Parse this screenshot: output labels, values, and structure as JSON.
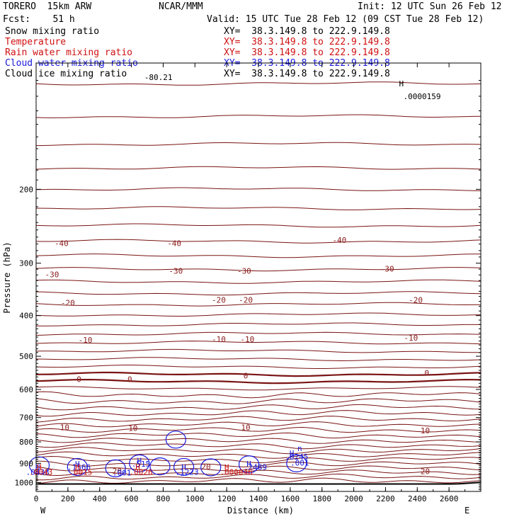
{
  "header": {
    "model": "TORERO  15km ARW",
    "forecast": "Fcst:    51 h",
    "org": "NCAR/MMM",
    "init": "Init: 12 UTC Sun 26 Feb 12",
    "valid": "Valid: 15 UTC Tue 28 Feb 12 (09 CST Tue 28 Feb 12)"
  },
  "fields": [
    {
      "name": "Snow mixing ratio",
      "xy": "XY=  38.3.149.8 to 222.9.149.8",
      "color": "#000000"
    },
    {
      "name": "Temperature",
      "xy": "XY=  38.3.149.8 to 222.9.149.8",
      "color": "#d01010"
    },
    {
      "name": "Rain water mixing ratio",
      "xy": "XY=  38.3.149.8 to 222.9.149.8",
      "color": "#d01010"
    },
    {
      "name": "Cloud water mixing ratio",
      "xy": "XY=  38.3.149.8 to 222.9.149.8",
      "color": "#1a1adc"
    },
    {
      "name": "Cloud ice mixing ratio",
      "xy": "XY=  38.3.149.8 to 222.9.149.8",
      "color": "#000000"
    }
  ],
  "chart_data": {
    "type": "contour",
    "xlabel": "Distance (km)",
    "ylabel": "Pressure (hPa)",
    "xlim": [
      0,
      2800
    ],
    "ylim": [
      1050,
      100
    ],
    "y_log": true,
    "xticks": [
      0,
      200,
      400,
      600,
      800,
      1000,
      1200,
      1400,
      1600,
      1800,
      2000,
      2200,
      2400,
      2600
    ],
    "yticks": [
      200,
      300,
      400,
      500,
      600,
      700,
      800,
      900,
      1000
    ],
    "x_end_labels": {
      "left": "W",
      "right": "E"
    },
    "temperature_label_color": "#8b1c1c",
    "temperature_labels": [
      {
        "text": "-40",
        "x": 160,
        "p": 269
      },
      {
        "text": "-40",
        "x": 870,
        "p": 269
      },
      {
        "text": "-40",
        "x": 1910,
        "p": 264
      },
      {
        "text": "-30",
        "x": 100,
        "p": 319
      },
      {
        "text": "-30",
        "x": 880,
        "p": 313
      },
      {
        "text": "-30",
        "x": 1310,
        "p": 313
      },
      {
        "text": "-30",
        "x": 2210,
        "p": 309
      },
      {
        "text": "-20",
        "x": 200,
        "p": 373
      },
      {
        "text": "-20",
        "x": 1150,
        "p": 367
      },
      {
        "text": "-20",
        "x": 1320,
        "p": 367
      },
      {
        "text": "-20",
        "x": 2390,
        "p": 367
      },
      {
        "text": "-10",
        "x": 310,
        "p": 457
      },
      {
        "text": "-10",
        "x": 1150,
        "p": 455
      },
      {
        "text": "-10",
        "x": 1330,
        "p": 455
      },
      {
        "text": "-10",
        "x": 2360,
        "p": 452
      },
      {
        "text": "0",
        "x": 270,
        "p": 567
      },
      {
        "text": "0",
        "x": 590,
        "p": 567
      },
      {
        "text": "0",
        "x": 1320,
        "p": 556
      },
      {
        "text": "0",
        "x": 2460,
        "p": 548
      },
      {
        "text": "10",
        "x": 180,
        "p": 738
      },
      {
        "text": "10",
        "x": 610,
        "p": 741
      },
      {
        "text": "10",
        "x": 1320,
        "p": 738
      },
      {
        "text": "10",
        "x": 2450,
        "p": 752
      },
      {
        "text": "20",
        "x": 1070,
        "p": 917
      },
      {
        "text": "20",
        "x": 510,
        "p": 938
      },
      {
        "text": "20",
        "x": 2450,
        "p": 940
      }
    ],
    "cloud_labels": [
      {
        "text": "H",
        "x": 10,
        "p": 918
      },
      {
        "text": ".0433",
        "x": 10,
        "p": 943
      },
      {
        "text": "H",
        "x": 260,
        "p": 902
      },
      {
        "text": ".1566",
        "x": 270,
        "p": 918
      },
      {
        "text": "H",
        "x": 650,
        "p": 886
      },
      {
        "text": ".515",
        "x": 660,
        "p": 903
      },
      {
        "text": "H",
        "x": 930,
        "p": 918
      },
      {
        "text": ".1223",
        "x": 950,
        "p": 943
      },
      {
        "text": "H",
        "x": 1340,
        "p": 902
      },
      {
        "text": ".2489",
        "x": 1380,
        "p": 918
      },
      {
        "text": "H",
        "x": 1610,
        "p": 852
      },
      {
        "text": ".0245",
        "x": 1640,
        "p": 868
      },
      {
        "text": ".001",
        "x": 1660,
        "p": 897
      },
      {
        "text": ".001",
        "x": 540,
        "p": 947
      },
      {
        "text": "n",
        "x": 1660,
        "p": 828
      }
    ],
    "rain_labels": [
      {
        "text": "H",
        "x": 20,
        "p": 918
      },
      {
        "text": ".0043",
        "x": 30,
        "p": 943
      },
      {
        "text": "H",
        "x": 260,
        "p": 918
      },
      {
        "text": ".0015",
        "x": 280,
        "p": 943
      },
      {
        "text": "H",
        "x": 640,
        "p": 918
      },
      {
        "text": ".0026",
        "x": 660,
        "p": 943
      },
      {
        "text": "H",
        "x": 1200,
        "p": 918
      },
      {
        "text": ".000046",
        "x": 1260,
        "p": 943
      }
    ],
    "top_labels": [
      {
        "text": "-80.21",
        "x": 770,
        "p": 108
      },
      {
        "text": ".0000159",
        "x": 2430,
        "p": 120
      },
      {
        "text": "H",
        "x": 2300,
        "p": 112
      }
    ]
  }
}
